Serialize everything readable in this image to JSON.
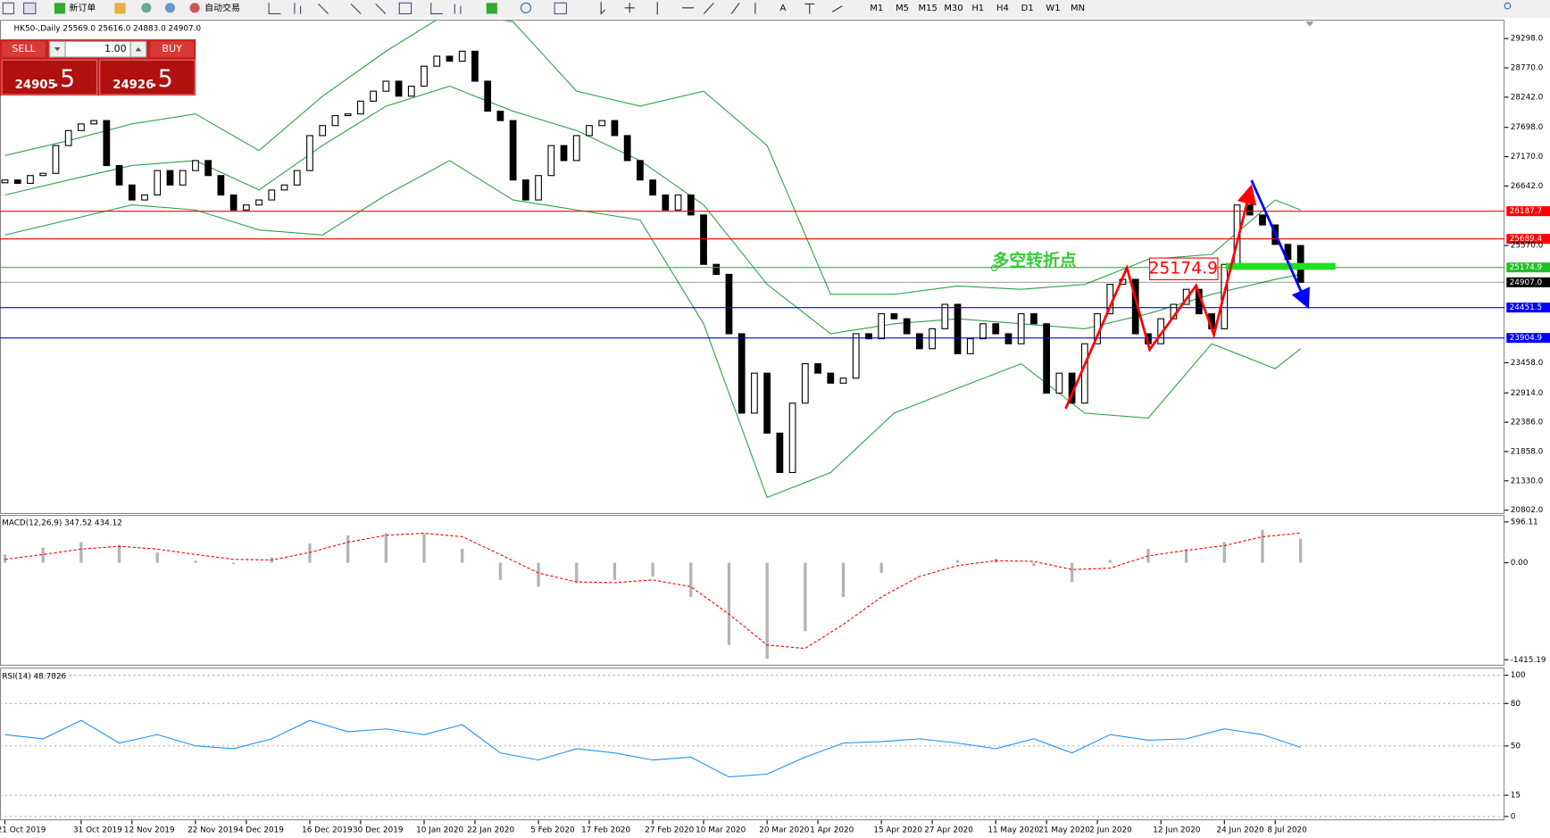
{
  "toolbar": {
    "new_order": "新订单",
    "auto_trading": "自动交易",
    "timeframes": [
      "M1",
      "M5",
      "M15",
      "M30",
      "H1",
      "H4",
      "D1",
      "W1",
      "MN"
    ]
  },
  "order_panel": {
    "sell": "SELL",
    "lots": "1.00",
    "buy": "BUY",
    "bid": "24905",
    "bid_fraction": ".5",
    "ask": "24926",
    "ask_fraction": ".5"
  },
  "chart_data": [
    {
      "type": "candlestick",
      "title": "HK50-,Daily  25569.0 25616.0 24883.0 24907.0",
      "categories": [
        "21 Oct 2019",
        null,
        null,
        null,
        null,
        null,
        "31 Oct 2019",
        null,
        null,
        null,
        "12 Nov 2019",
        null,
        null,
        null,
        null,
        "22 Nov 2019",
        null,
        null,
        null,
        "4 Dec 2019",
        null,
        null,
        null,
        null,
        "16 Dec 2019",
        null,
        null,
        null,
        "30 Dec 2019",
        null,
        null,
        null,
        null,
        "10 Jan 2020",
        null,
        null,
        null,
        "22 Jan 2020",
        null,
        null,
        null,
        null,
        "5 Feb 2020",
        null,
        null,
        null,
        "17 Feb 2020",
        null,
        null,
        null,
        null,
        "27 Feb 2020",
        null,
        null,
        null,
        "10 Mar 2020",
        null,
        null,
        null,
        null,
        "20 Mar 2020",
        null,
        null,
        null,
        "1 Apr 2020",
        null,
        null,
        null,
        null,
        "15 Apr 2020",
        null,
        null,
        null,
        "27 Apr 2020",
        null,
        null,
        null,
        null,
        "11 May 2020",
        null,
        null,
        null,
        "21 May 2020",
        null,
        null,
        null,
        "2 Jun 2020",
        null,
        null,
        null,
        null,
        "12 Jun 2020",
        null,
        null,
        null,
        null,
        "24 Jun 2020",
        null,
        null,
        null,
        "8 Jul 2020",
        null,
        null
      ],
      "open": [
        26700,
        26750,
        26690,
        26830,
        26870,
        27370,
        27640,
        27760,
        27820,
        27010,
        26660,
        26390,
        26480,
        26920,
        26660,
        26920,
        27100,
        26830,
        26480,
        26210,
        26300,
        26390,
        26570,
        26660,
        26920,
        27550,
        27730,
        27910,
        27940,
        28170,
        28350,
        28530,
        28260,
        28440,
        28800,
        28980,
        28890,
        29070,
        28530,
        27990,
        27820,
        26750,
        26390,
        26830,
        27370,
        27100,
        27550,
        27730,
        27820,
        27550,
        27100,
        26750,
        26480,
        26210,
        26480,
        26120,
        25230,
        25050,
        23980,
        22550,
        23270,
        22190,
        21480,
        22730,
        23440,
        23270,
        23090,
        23180,
        23980,
        23890,
        24340,
        24250,
        23980,
        23710,
        24070,
        24510,
        23620,
        23890,
        24160,
        23980,
        23800,
        24340,
        24160,
        22910,
        23270,
        22730,
        23800,
        24340,
        24870,
        24960,
        23980,
        23800,
        24250,
        24510,
        24780,
        24340,
        24070,
        25230,
        26300,
        26120,
        25940,
        25590,
        25569
      ],
      "close": [
        26750,
        26690,
        26830,
        26870,
        27370,
        27640,
        27760,
        27820,
        27010,
        26660,
        26390,
        26480,
        26920,
        26660,
        26920,
        27100,
        26830,
        26480,
        26210,
        26300,
        26390,
        26570,
        26660,
        26920,
        27550,
        27730,
        27910,
        27940,
        28170,
        28350,
        28530,
        28260,
        28440,
        28800,
        28980,
        28890,
        29070,
        28530,
        27990,
        27820,
        26750,
        26390,
        26830,
        27370,
        27100,
        27550,
        27730,
        27820,
        27550,
        27100,
        26750,
        26480,
        26210,
        26480,
        26120,
        25230,
        25050,
        23980,
        22550,
        23270,
        22190,
        21480,
        22730,
        23440,
        23270,
        23090,
        23180,
        23980,
        23890,
        24340,
        24250,
        23980,
        23710,
        24070,
        24510,
        23620,
        23890,
        24160,
        23980,
        23800,
        24340,
        24160,
        22910,
        23270,
        22730,
        23800,
        24340,
        24870,
        24960,
        23980,
        23800,
        24250,
        24510,
        24780,
        24340,
        24070,
        25230,
        26300,
        26120,
        25940,
        25590,
        25320,
        24907
      ],
      "bands": {
        "color": "#2ca24a",
        "x": [
          0,
          5,
          10,
          15,
          20,
          25,
          30,
          35,
          40,
          45,
          50,
          55,
          60,
          65,
          70,
          75,
          80,
          85,
          90,
          95,
          100,
          102
        ],
        "upper": [
          27190,
          27460,
          27760,
          27940,
          27280,
          28260,
          29070,
          29780,
          29600,
          28350,
          28080,
          28350,
          27370,
          24690,
          24690,
          24840,
          24780,
          24870,
          25320,
          25410,
          26390,
          26210
        ],
        "middle": [
          26480,
          26750,
          27010,
          27100,
          26570,
          27370,
          28080,
          28440,
          27990,
          27640,
          27100,
          26300,
          24870,
          23980,
          24160,
          24250,
          24160,
          24070,
          24340,
          24690,
          24960,
          25050
        ],
        "lower": [
          25760,
          26030,
          26300,
          26210,
          25850,
          25760,
          26480,
          27100,
          26390,
          26210,
          26030,
          24160,
          21030,
          21480,
          22550,
          23000,
          23440,
          22550,
          22460,
          23800,
          23350,
          23710
        ]
      },
      "levels": [
        {
          "value": 26187.7,
          "color": "#ff0000"
        },
        {
          "value": 25689.4,
          "color": "#ff0000"
        },
        {
          "value": 25174.9,
          "color": "#22c022"
        },
        {
          "value": 24907,
          "label": "24907.0",
          "color": "#000000"
        },
        {
          "value": 24451.5,
          "color": "#0000ff"
        },
        {
          "value": 23904.9,
          "color": "#0000ff"
        }
      ],
      "annotations": {
        "turning_point": "多空转折点",
        "level_label": "25174.9"
      },
      "ylim": [
        20750,
        29620
      ],
      "yticks": [
        {
          "value": 29298,
          "label": "29298.0"
        },
        {
          "value": 28770,
          "label": "28770.0"
        },
        {
          "value": 28242,
          "label": "28242.0"
        },
        {
          "value": 27698,
          "label": "27698.0"
        },
        {
          "value": 27170,
          "label": "27170.0"
        },
        {
          "value": 26642,
          "label": "26642.0"
        },
        {
          "value": 25570,
          "label": "25570.0"
        },
        {
          "value": 23458,
          "label": "23458.0"
        },
        {
          "value": 22914,
          "label": "22914.0"
        },
        {
          "value": 22386,
          "label": "22386.0"
        },
        {
          "value": 21858,
          "label": "21858.0"
        },
        {
          "value": 21330,
          "label": "21330.0"
        },
        {
          "value": 20802,
          "label": "20802.0"
        }
      ]
    },
    {
      "type": "macd",
      "title": "MACD(12,26,9) 347.52 434.12",
      "color": "#b4b4b4",
      "signal_color": "#ff0000",
      "x": [
        0,
        3,
        6,
        9,
        12,
        15,
        18,
        21,
        24,
        27,
        30,
        33,
        36,
        39,
        42,
        45,
        48,
        51,
        54,
        57,
        60,
        63,
        66,
        69,
        72,
        75,
        78,
        81,
        84,
        87,
        90,
        93,
        96,
        99,
        102
      ],
      "values": [
        120,
        220,
        300,
        260,
        150,
        30,
        -20,
        80,
        280,
        400,
        430,
        420,
        200,
        -250,
        -350,
        -300,
        -250,
        -200,
        -500,
        -1200,
        -1400,
        -1000,
        -500,
        -150,
        0,
        40,
        60,
        -50,
        -280,
        40,
        200,
        200,
        300,
        480,
        350
      ],
      "signal": [
        50,
        120,
        200,
        240,
        200,
        120,
        50,
        40,
        150,
        300,
        400,
        430,
        380,
        120,
        -150,
        -280,
        -290,
        -250,
        -350,
        -750,
        -1200,
        -1250,
        -900,
        -500,
        -200,
        -40,
        30,
        20,
        -100,
        -80,
        100,
        180,
        250,
        380,
        434
      ],
      "ylim": [
        -1487,
        682
      ],
      "yticks": [
        596.11,
        {
          "value": 0,
          "label": "0.00"
        },
        -1415.19
      ]
    },
    {
      "type": "rsi",
      "title": "RSI(14) 48.7826",
      "color": "#1e90ff",
      "x": [
        0,
        3,
        6,
        9,
        12,
        15,
        18,
        21,
        24,
        27,
        30,
        33,
        36,
        39,
        42,
        45,
        48,
        51,
        54,
        57,
        60,
        63,
        66,
        69,
        72,
        75,
        78,
        81,
        84,
        87,
        90,
        93,
        96,
        99,
        102
      ],
      "values": [
        58,
        55,
        68,
        52,
        58,
        50,
        48,
        55,
        68,
        60,
        62,
        58,
        65,
        45,
        40,
        48,
        45,
        40,
        42,
        28,
        30,
        42,
        52,
        53,
        55,
        52,
        48,
        55,
        45,
        58,
        54,
        55,
        62,
        58,
        49
      ],
      "ylim": [
        -2,
        104
      ],
      "yticks": [
        100,
        80,
        50,
        15,
        0
      ]
    }
  ]
}
